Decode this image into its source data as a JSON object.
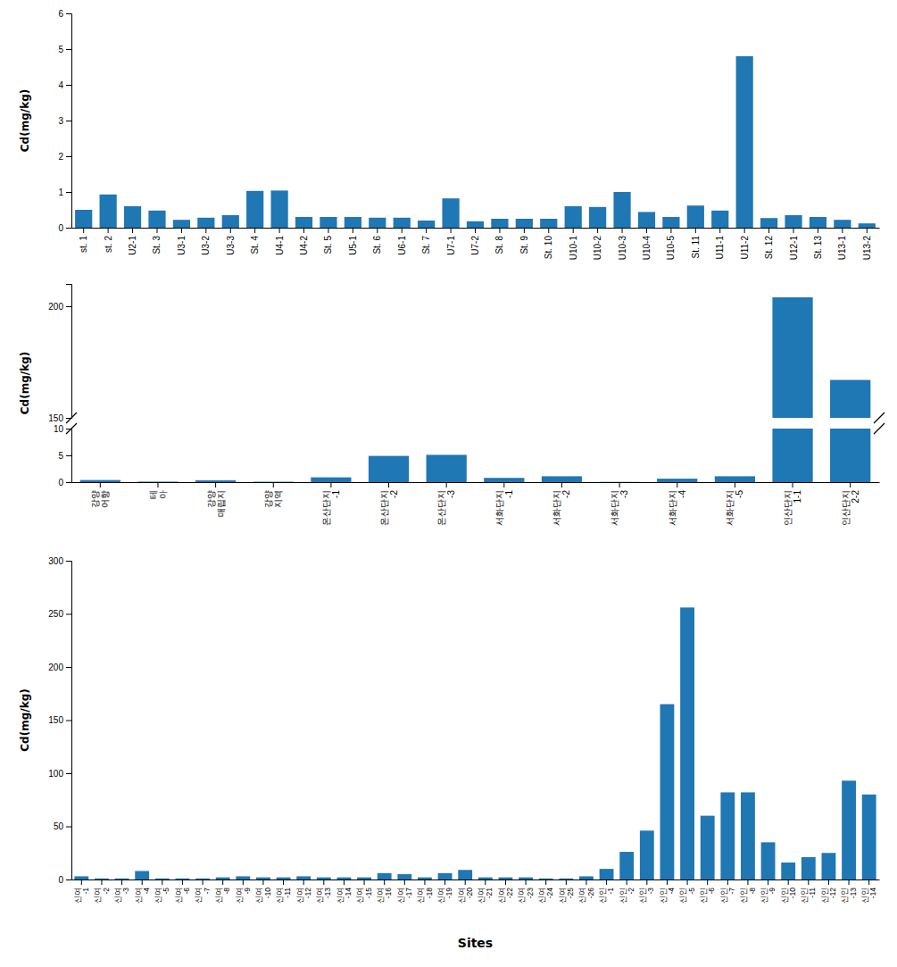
{
  "chart_data": [
    {
      "type": "bar",
      "categories": [
        "st. 1",
        "st. 2",
        "U2-1",
        "St. 3",
        "U3-1",
        "U3-2",
        "U3-3",
        "St. 4",
        "U4-1",
        "U4-2",
        "St. 5",
        "U5-1",
        "St. 6",
        "U6-1",
        "St. 7",
        "U7-1",
        "U7-2",
        "St. 8",
        "St. 9",
        "St. 10",
        "U10-1",
        "U10-2",
        "U10-3",
        "U10-4",
        "U10-5",
        "St. 11",
        "U11-1",
        "U11-2",
        "St. 12",
        "U12-1",
        "St. 13",
        "U13-1",
        "U13-2"
      ],
      "values": [
        0.5,
        0.93,
        0.6,
        0.48,
        0.22,
        0.28,
        0.35,
        1.03,
        1.04,
        0.3,
        0.3,
        0.3,
        0.28,
        0.28,
        0.2,
        0.82,
        0.18,
        0.25,
        0.25,
        0.25,
        0.6,
        0.58,
        1.0,
        0.44,
        0.3,
        0.62,
        0.48,
        4.8,
        0.27,
        0.35,
        0.3,
        0.22,
        0.12
      ],
      "ylim": [
        0,
        6
      ],
      "yticks": [
        0,
        1,
        2,
        3,
        4,
        5,
        6
      ],
      "y_label": "Cd(mg/kg)"
    },
    {
      "type": "bar",
      "categories": [
        null,
        null,
        null,
        null,
        null,
        null,
        null,
        null,
        null,
        null,
        null,
        null,
        null,
        null
      ],
      "values": [
        null,
        null,
        null,
        null,
        null,
        null,
        null,
        null,
        null,
        null,
        null,
        null,
        204.0,
        167.0
      ],
      "ylim": [
        150,
        210
      ],
      "yticks": [
        150,
        200
      ],
      "tick_labels": "y"
    },
    {
      "type": "bar",
      "categories": [
        "강양\n어항",
        "테\n아",
        "강양\n매립지",
        "강양\n지역",
        "온산단지\n-1",
        "온산단지\n-2",
        "온산단지\n-3",
        "서화단지\n-1",
        "서화단지\n-2",
        "서화단지\n-3",
        "서화단지\n-4",
        "서화단지\n-5",
        "인산단지\n1-1",
        "인산단지\n2-2"
      ],
      "values": [
        0.4,
        0.1,
        0.35,
        0.08,
        0.9,
        4.9,
        5.1,
        0.8,
        1.1,
        0.05,
        0.65,
        1.1,
        10,
        10
      ],
      "ylim": [
        0,
        10
      ],
      "yticks": [
        0,
        5,
        10
      ],
      "y_label": "Cd(mg/kg)"
    },
    {
      "type": "bar",
      "categories": [
        "신여\n-1",
        "신여\n-2",
        "신여\n-3",
        "신여\n-4",
        "신여\n-5",
        "신여\n-6",
        "신여\n-7",
        "신여\n-8",
        "신여\n-9",
        "신여\n-10",
        "신여\n-11",
        "신여\n-12",
        "신여\n-13",
        "신여\n-14",
        "신여\n-15",
        "신여\n-16",
        "신여\n-17",
        "신여\n-18",
        "신여\n-19",
        "신여\n-20",
        "신여\n-21",
        "신여\n-22",
        "신여\n-23",
        "신여\n-24",
        "신여\n-25",
        "신여\n-26",
        "신인\n-1",
        "신인\n-2",
        "신인\n-3",
        "신인\n-4",
        "신인\n-5",
        "신인\n-6",
        "신인\n-7",
        "신인\n-8",
        "신인\n-9",
        "신인\n-10",
        "신인\n-11",
        "신인\n-12",
        "신인\n-13",
        "신인\n-14"
      ],
      "values": [
        3,
        1,
        1,
        8,
        1,
        1,
        1,
        2,
        3,
        2,
        2,
        3,
        2,
        2,
        2,
        6,
        5,
        2,
        6,
        9,
        2,
        2,
        2,
        1,
        1,
        3,
        10,
        26,
        46,
        165,
        256,
        60,
        82,
        82,
        35,
        16,
        21,
        25,
        93,
        80
      ],
      "ylim": [
        0,
        300
      ],
      "yticks": [
        0,
        50,
        100,
        150,
        200,
        250,
        300
      ],
      "y_label": "Cd(mg/kg)",
      "x_label": "Sites"
    }
  ]
}
